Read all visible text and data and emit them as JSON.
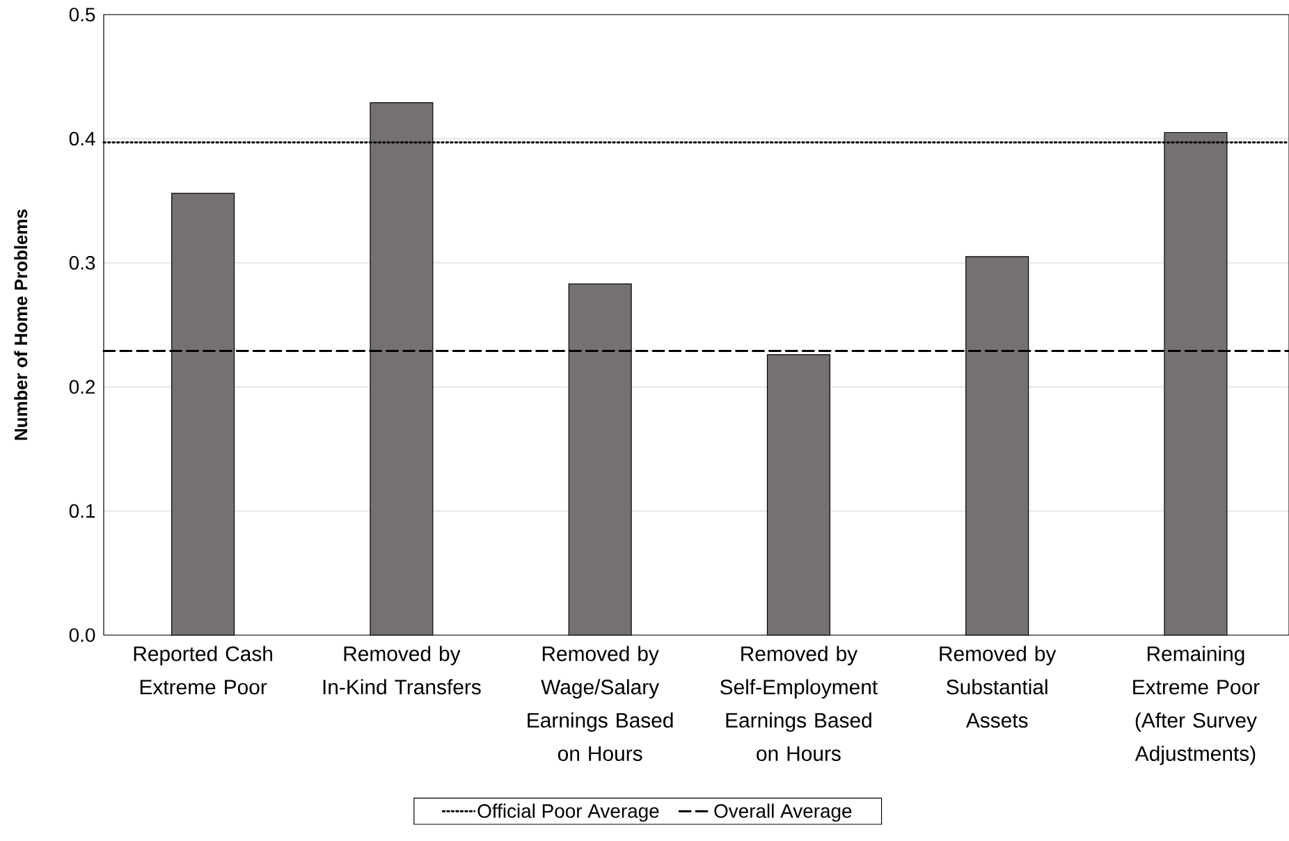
{
  "chart_data": {
    "type": "bar",
    "ylabel": "Number of Home Problems",
    "categories": [
      "Reported Cash Extreme Poor",
      "Removed by In-Kind Transfers",
      "Removed by Wage/Salary Earnings Based on Hours",
      "Removed by Self-Employment Earnings Based on Hours",
      "Removed by Substantial Assets",
      "Remaining Extreme Poor (After Survey Adjustments)"
    ],
    "values": [
      0.356,
      0.429,
      0.283,
      0.226,
      0.305,
      0.405
    ],
    "color": "#767171",
    "ylim": [
      0,
      0.5
    ],
    "yticks": [
      {
        "value": 0,
        "label": "0.0"
      },
      0.1,
      0.2,
      0.3,
      0.4,
      0.5
    ],
    "grid": "y",
    "legend": "bottom",
    "ref_lines": [
      {
        "axis": "y",
        "value": 0.397,
        "label": "Official Poor Average",
        "color": "#000000",
        "line_style": "dotted"
      },
      {
        "axis": "y",
        "value": 0.229,
        "label": "Overall Average",
        "color": "#000000",
        "line_style": "dashed"
      }
    ]
  }
}
